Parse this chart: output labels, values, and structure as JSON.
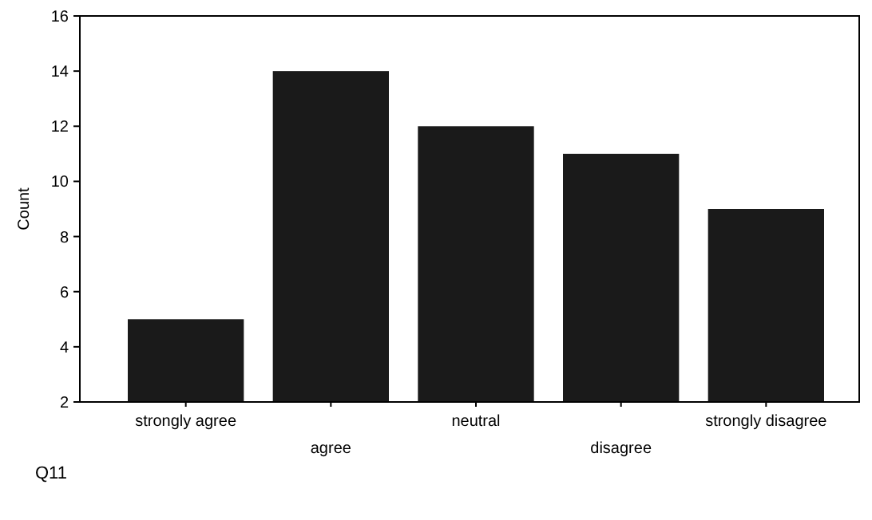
{
  "chart_data": {
    "type": "bar",
    "xlabel": "Q11",
    "ylabel": "Count",
    "categories": [
      "strongly agree",
      "agree",
      "neutral",
      "disagree",
      "strongly disagree"
    ],
    "values": [
      5,
      14,
      12,
      11,
      9
    ],
    "color": "#1a1a1a",
    "ylim": [
      2,
      16
    ],
    "yticks": [
      2,
      4,
      6,
      8,
      10,
      12,
      14,
      16
    ],
    "grid": false
  }
}
